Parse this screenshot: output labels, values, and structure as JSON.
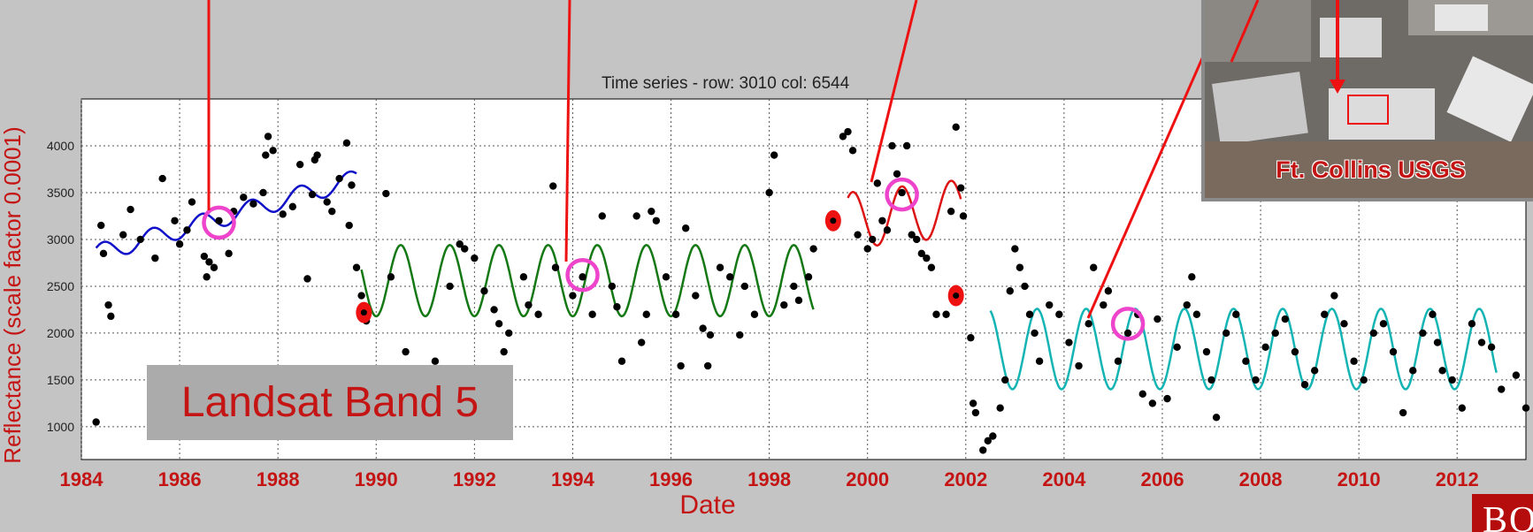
{
  "chart_data": {
    "type": "scatter",
    "title": "Time series - row: 3010 col: 6544",
    "xlabel": "Date",
    "ylabel": "Reflectance (scale factor 0.0001)",
    "xlim": [
      1984.0,
      2013.4
    ],
    "ylim": [
      650,
      4500
    ],
    "x_ticks": [
      "1984",
      "1986",
      "1988",
      "1990",
      "1992",
      "1994",
      "1996",
      "1998",
      "2000",
      "2002",
      "2004",
      "2006",
      "2008",
      "2010",
      "2012"
    ],
    "y_ticks": [
      "1000",
      "1500",
      "2000",
      "2500",
      "3000",
      "3500",
      "4000"
    ],
    "grid": true,
    "observations": [
      [
        1984.3,
        1050
      ],
      [
        1984.4,
        3150
      ],
      [
        1984.45,
        2850
      ],
      [
        1984.55,
        2300
      ],
      [
        1984.6,
        2180
      ],
      [
        1984.85,
        3050
      ],
      [
        1985.0,
        3320
      ],
      [
        1985.2,
        3000
      ],
      [
        1985.5,
        2800
      ],
      [
        1985.65,
        3650
      ],
      [
        1985.9,
        3200
      ],
      [
        1986.0,
        2950
      ],
      [
        1986.15,
        3100
      ],
      [
        1986.25,
        3400
      ],
      [
        1986.5,
        2820
      ],
      [
        1986.55,
        2600
      ],
      [
        1986.6,
        2760
      ],
      [
        1986.7,
        2700
      ],
      [
        1986.8,
        3200
      ],
      [
        1987.0,
        2850
      ],
      [
        1987.1,
        3300
      ],
      [
        1987.3,
        3450
      ],
      [
        1987.5,
        3380
      ],
      [
        1987.7,
        3500
      ],
      [
        1987.75,
        3900
      ],
      [
        1987.8,
        4100
      ],
      [
        1987.9,
        3950
      ],
      [
        1988.1,
        3270
      ],
      [
        1988.3,
        3350
      ],
      [
        1988.45,
        3800
      ],
      [
        1988.6,
        2580
      ],
      [
        1988.7,
        3480
      ],
      [
        1988.75,
        3850
      ],
      [
        1988.8,
        3900
      ],
      [
        1989.0,
        3400
      ],
      [
        1989.1,
        3300
      ],
      [
        1989.25,
        3650
      ],
      [
        1989.4,
        4030
      ],
      [
        1989.45,
        3150
      ],
      [
        1989.5,
        3580
      ],
      [
        1989.6,
        2700
      ],
      [
        1989.7,
        2400
      ],
      [
        1989.8,
        2130
      ],
      [
        1990.2,
        3490
      ],
      [
        1990.3,
        2600
      ],
      [
        1990.6,
        1800
      ],
      [
        1991.2,
        1700
      ],
      [
        1991.5,
        2500
      ],
      [
        1991.7,
        2950
      ],
      [
        1991.8,
        2900
      ],
      [
        1992.0,
        2800
      ],
      [
        1992.2,
        2450
      ],
      [
        1992.4,
        2250
      ],
      [
        1992.5,
        2100
      ],
      [
        1992.6,
        1800
      ],
      [
        1992.7,
        2000
      ],
      [
        1993.0,
        2600
      ],
      [
        1993.1,
        2300
      ],
      [
        1993.3,
        2200
      ],
      [
        1993.6,
        3570
      ],
      [
        1993.65,
        2700
      ],
      [
        1994.0,
        2400
      ],
      [
        1994.2,
        2600
      ],
      [
        1994.4,
        2200
      ],
      [
        1994.6,
        3250
      ],
      [
        1994.8,
        2500
      ],
      [
        1994.9,
        2280
      ],
      [
        1995.0,
        1700
      ],
      [
        1995.3,
        3250
      ],
      [
        1995.4,
        1900
      ],
      [
        1995.5,
        2200
      ],
      [
        1995.6,
        3300
      ],
      [
        1995.7,
        3200
      ],
      [
        1995.9,
        2600
      ],
      [
        1996.1,
        2200
      ],
      [
        1996.2,
        1650
      ],
      [
        1996.3,
        3120
      ],
      [
        1996.5,
        2400
      ],
      [
        1996.65,
        2050
      ],
      [
        1996.75,
        1650
      ],
      [
        1996.8,
        1980
      ],
      [
        1997.0,
        2700
      ],
      [
        1997.2,
        2600
      ],
      [
        1997.4,
        1980
      ],
      [
        1997.5,
        2500
      ],
      [
        1997.7,
        2200
      ],
      [
        1998.0,
        3500
      ],
      [
        1998.1,
        3900
      ],
      [
        1998.3,
        2300
      ],
      [
        1998.5,
        2500
      ],
      [
        1998.6,
        2350
      ],
      [
        1998.8,
        2600
      ],
      [
        1998.9,
        2900
      ],
      [
        1999.3,
        3200
      ],
      [
        1999.5,
        4100
      ],
      [
        1999.6,
        4150
      ],
      [
        1999.7,
        3950
      ],
      [
        1999.8,
        3050
      ],
      [
        2000.0,
        2900
      ],
      [
        2000.1,
        3000
      ],
      [
        2000.2,
        3600
      ],
      [
        2000.3,
        3200
      ],
      [
        2000.4,
        3100
      ],
      [
        2000.5,
        4000
      ],
      [
        2000.6,
        3700
      ],
      [
        2000.7,
        3500
      ],
      [
        2000.8,
        4000
      ],
      [
        2000.9,
        3050
      ],
      [
        2001.0,
        3000
      ],
      [
        2001.1,
        2850
      ],
      [
        2001.2,
        2800
      ],
      [
        2001.3,
        2700
      ],
      [
        2001.4,
        2200
      ],
      [
        2001.6,
        2200
      ],
      [
        2001.7,
        3300
      ],
      [
        2001.8,
        4200
      ],
      [
        2001.9,
        3550
      ],
      [
        2001.95,
        3250
      ],
      [
        2002.1,
        1950
      ],
      [
        2002.15,
        1250
      ],
      [
        2002.2,
        1150
      ],
      [
        2002.35,
        750
      ],
      [
        2002.45,
        850
      ],
      [
        2002.55,
        900
      ],
      [
        2002.7,
        1200
      ],
      [
        2002.8,
        1500
      ],
      [
        2002.9,
        2450
      ],
      [
        2003.0,
        2900
      ],
      [
        2003.1,
        2700
      ],
      [
        2003.2,
        2500
      ],
      [
        2003.3,
        2200
      ],
      [
        2003.4,
        2000
      ],
      [
        2003.5,
        1700
      ],
      [
        2003.7,
        2300
      ],
      [
        2003.9,
        2200
      ],
      [
        2004.1,
        1900
      ],
      [
        2004.3,
        1650
      ],
      [
        2004.5,
        2100
      ],
      [
        2004.6,
        2700
      ],
      [
        2004.8,
        2300
      ],
      [
        2004.9,
        2450
      ],
      [
        2005.1,
        1700
      ],
      [
        2005.3,
        2000
      ],
      [
        2005.5,
        2200
      ],
      [
        2005.6,
        1350
      ],
      [
        2005.8,
        1250
      ],
      [
        2005.9,
        2150
      ],
      [
        2006.1,
        1300
      ],
      [
        2006.3,
        1850
      ],
      [
        2006.5,
        2300
      ],
      [
        2006.6,
        2600
      ],
      [
        2006.7,
        2200
      ],
      [
        2006.9,
        1800
      ],
      [
        2007.0,
        1500
      ],
      [
        2007.1,
        1100
      ],
      [
        2007.3,
        2000
      ],
      [
        2007.5,
        2200
      ],
      [
        2007.7,
        1700
      ],
      [
        2007.9,
        1500
      ],
      [
        2008.1,
        1850
      ],
      [
        2008.3,
        2000
      ],
      [
        2008.5,
        2150
      ],
      [
        2008.7,
        1800
      ],
      [
        2008.9,
        1450
      ],
      [
        2009.1,
        1600
      ],
      [
        2009.3,
        2200
      ],
      [
        2009.5,
        2400
      ],
      [
        2009.7,
        2100
      ],
      [
        2009.9,
        1700
      ],
      [
        2010.1,
        1500
      ],
      [
        2010.3,
        2000
      ],
      [
        2010.5,
        2100
      ],
      [
        2010.7,
        1800
      ],
      [
        2010.9,
        1150
      ],
      [
        2011.1,
        1600
      ],
      [
        2011.3,
        2000
      ],
      [
        2011.5,
        2200
      ],
      [
        2011.6,
        1900
      ],
      [
        2011.7,
        1600
      ],
      [
        2011.9,
        1500
      ],
      [
        2012.1,
        1200
      ],
      [
        2012.3,
        2100
      ],
      [
        2012.5,
        1900
      ],
      [
        2012.7,
        1850
      ],
      [
        2012.9,
        1400
      ],
      [
        2013.4,
        1200
      ],
      [
        2013.2,
        1550
      ]
    ],
    "fits": [
      {
        "color": "#1010c8",
        "x": [
          1984.3,
          1989.6
        ],
        "a": 2850,
        "b": 150,
        "amp": 100,
        "phase": 0.2
      },
      {
        "color": "#147814",
        "x": [
          1989.7,
          1998.9
        ],
        "a": 2560,
        "b": 0,
        "amp": 380,
        "phase": 0.25
      },
      {
        "color": "#dd1414",
        "x": [
          1999.6,
          2001.9
        ],
        "a": 3200,
        "b": 60,
        "amp": 300,
        "phase": 0.45
      },
      {
        "color": "#14b4b4",
        "x": [
          2002.5,
          2012.8
        ],
        "a": 1830,
        "b": 0,
        "amp": 430,
        "phase": 0.2
      }
    ],
    "breaks": [
      [
        1989.75,
        2220
      ],
      [
        1999.3,
        3200
      ],
      [
        2001.8,
        2400
      ]
    ],
    "highlights": [
      [
        1986.8,
        3180
      ],
      [
        1994.2,
        2620
      ],
      [
        2000.7,
        3480
      ],
      [
        2005.3,
        2100
      ]
    ]
  },
  "annotation_box": "Landsat Band 5",
  "photo_caption": "Ft. Collins USGS",
  "logo_text": "BOSTO",
  "colors": {
    "axis_label": "#c41414",
    "highlight": "#ee44cc",
    "break": "#ee1111",
    "pointer": "#ee1111"
  }
}
